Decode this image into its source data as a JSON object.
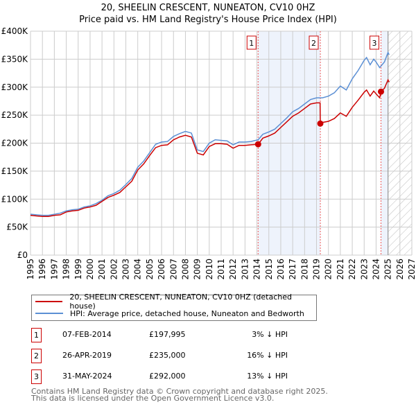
{
  "title_line1": "20, SHEELIN CRESCENT, NUNEATON, CV10 0HZ",
  "title_line2": "Price paid vs. HM Land Registry's House Price Index (HPI)",
  "chart_data": {
    "type": "line",
    "ylim": [
      0,
      400000
    ],
    "xlim": [
      1995,
      2027
    ],
    "y_ticks": [
      0,
      50000,
      100000,
      150000,
      200000,
      250000,
      300000,
      350000,
      400000
    ],
    "y_tick_labels": [
      "£0",
      "£50K",
      "£100K",
      "£150K",
      "£200K",
      "£250K",
      "£300K",
      "£350K",
      "£400K"
    ],
    "x_ticks": [
      1995,
      1996,
      1997,
      1998,
      1999,
      2000,
      2001,
      2002,
      2003,
      2004,
      2005,
      2006,
      2007,
      2008,
      2009,
      2010,
      2011,
      2012,
      2013,
      2014,
      2015,
      2016,
      2017,
      2018,
      2019,
      2020,
      2021,
      2022,
      2023,
      2024,
      2025,
      2026,
      2027
    ],
    "grid": true,
    "forecast_hatch_from": 2025,
    "shaded_ranges": [
      [
        2014.1,
        2019.32
      ],
      [
        2024.41,
        2025
      ]
    ],
    "series": [
      {
        "name": "20, SHEELIN CRESCENT, NUNEATON, CV10 0HZ (detached house)",
        "color": "#cc0000",
        "x": [
          1995,
          1995.5,
          1996,
          1996.5,
          1997,
          1997.5,
          1998,
          1998.5,
          1999,
          1999.5,
          2000,
          2000.5,
          2001,
          2001.5,
          2002,
          2002.5,
          2003,
          2003.5,
          2004,
          2004.5,
          2005,
          2005.5,
          2006,
          2006.5,
          2007,
          2007.5,
          2008,
          2008.5,
          2009,
          2009.5,
          2010,
          2010.5,
          2011,
          2011.5,
          2012,
          2012.5,
          2013,
          2013.5,
          2014.1,
          2014.5,
          2015,
          2015.5,
          2016,
          2016.5,
          2017,
          2017.5,
          2018,
          2018.5,
          2019,
          2019.3,
          2019.32,
          2019.5,
          2020,
          2020.5,
          2021,
          2021.5,
          2022,
          2022.5,
          2023,
          2023.2,
          2023.5,
          2023.8,
          2024,
          2024.3,
          2024.41,
          2024.7,
          2025,
          2025.1
        ],
        "values": [
          71,
          70,
          69,
          69,
          71,
          72,
          77,
          79,
          80,
          84,
          86,
          89,
          96,
          103,
          107,
          112,
          122,
          132,
          152,
          163,
          178,
          192,
          196,
          197,
          206,
          211,
          214,
          211,
          182,
          179,
          194,
          199,
          199,
          198,
          191,
          196,
          196,
          197,
          198,
          209,
          213,
          218,
          228,
          238,
          248,
          254,
          262,
          270,
          272,
          272,
          235,
          237,
          239,
          244,
          254,
          248,
          264,
          277,
          291,
          295,
          284,
          293,
          288,
          281,
          292,
          298,
          313,
          309
        ]
      },
      {
        "name": "HPI: Average price, detached house, Nuneaton and Bedworth",
        "color": "#5b8fd4",
        "x": [
          1995,
          1995.5,
          1996,
          1996.5,
          1997,
          1997.5,
          1998,
          1998.5,
          1999,
          1999.5,
          2000,
          2000.5,
          2001,
          2001.5,
          2002,
          2002.5,
          2003,
          2003.5,
          2004,
          2004.5,
          2005,
          2005.5,
          2006,
          2006.5,
          2007,
          2007.5,
          2008,
          2008.5,
          2009,
          2009.5,
          2010,
          2010.5,
          2011,
          2011.5,
          2012,
          2012.5,
          2013,
          2013.5,
          2014.1,
          2014.5,
          2015,
          2015.5,
          2016,
          2016.5,
          2017,
          2017.5,
          2018,
          2018.5,
          2019,
          2019.5,
          2020,
          2020.5,
          2021,
          2021.5,
          2022,
          2022.5,
          2023,
          2023.2,
          2023.5,
          2023.8,
          2024,
          2024.3,
          2024.7,
          2025,
          2025.1
        ],
        "values": [
          73,
          72,
          71,
          71,
          73,
          75,
          79,
          81,
          82,
          86,
          88,
          92,
          98,
          106,
          110,
          116,
          126,
          137,
          157,
          168,
          183,
          198,
          202,
          203,
          212,
          217,
          221,
          218,
          188,
          185,
          200,
          206,
          205,
          204,
          197,
          202,
          202,
          203,
          206,
          216,
          220,
          225,
          235,
          245,
          256,
          262,
          270,
          278,
          281,
          281,
          284,
          290,
          302,
          295,
          315,
          330,
          348,
          353,
          340,
          350,
          345,
          335,
          345,
          362,
          358
        ]
      }
    ],
    "sales": [
      {
        "id": "1",
        "x": 2014.1,
        "value": 197995,
        "date": "07-FEB-2014",
        "price": "£197,995",
        "diff": "3% ↓ HPI"
      },
      {
        "id": "2",
        "x": 2019.32,
        "value": 235000,
        "date": "26-APR-2019",
        "price": "£235,000",
        "diff": "16% ↓ HPI"
      },
      {
        "id": "3",
        "x": 2024.41,
        "value": 292000,
        "date": "31-MAY-2024",
        "price": "£292,000",
        "diff": "13% ↓ HPI"
      }
    ]
  },
  "footer_line1": "Contains HM Land Registry data © Crown copyright and database right 2025.",
  "footer_line2": "This data is licensed under the Open Government Licence v3.0."
}
